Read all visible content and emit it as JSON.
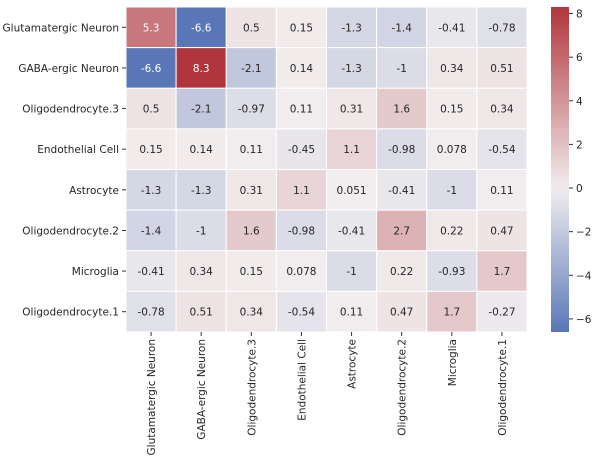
{
  "chart_data": {
    "type": "heatmap",
    "rows": [
      "Glutamatergic Neuron",
      "GABA-ergic Neuron",
      "Oligodendrocyte.3",
      "Endothelial Cell",
      "Astrocyte",
      "Oligodendrocyte.2",
      "Microglia",
      "Oligodendrocyte.1"
    ],
    "columns": [
      "Glutamatergic Neuron",
      "GABA-ergic Neuron",
      "Oligodendrocyte.3",
      "Endothelial Cell",
      "Astrocyte",
      "Oligodendrocyte.2",
      "Microglia",
      "Oligodendrocyte.1"
    ],
    "values": [
      [
        5.3,
        -6.6,
        0.5,
        0.15,
        -1.3,
        -1.4,
        -0.41,
        -0.78
      ],
      [
        -6.6,
        8.3,
        -2.1,
        0.14,
        -1.3,
        -1,
        0.34,
        0.51
      ],
      [
        0.5,
        -2.1,
        -0.97,
        0.11,
        0.31,
        1.6,
        0.15,
        0.34
      ],
      [
        0.15,
        0.14,
        0.11,
        -0.45,
        1.1,
        -0.98,
        0.078,
        -0.54
      ],
      [
        -1.3,
        -1.3,
        0.31,
        1.1,
        0.051,
        -0.41,
        -1,
        0.11
      ],
      [
        -1.4,
        -1,
        1.6,
        -0.98,
        -0.41,
        2.7,
        0.22,
        0.47
      ],
      [
        -0.41,
        0.34,
        0.15,
        0.078,
        -1,
        0.22,
        -0.93,
        1.7
      ],
      [
        -0.78,
        0.51,
        0.34,
        -0.54,
        0.11,
        0.47,
        1.7,
        -0.27
      ]
    ],
    "color_scale": {
      "min": -6.6,
      "max": 8.3,
      "center": 0,
      "low_color": "#5977b7",
      "mid_color": "#f2eeef",
      "high_color": "#b1353c"
    },
    "colorbar_ticks": [
      -6,
      -4,
      -2,
      0,
      2,
      4,
      6,
      8
    ],
    "grid_line_color": "#ffffff"
  }
}
